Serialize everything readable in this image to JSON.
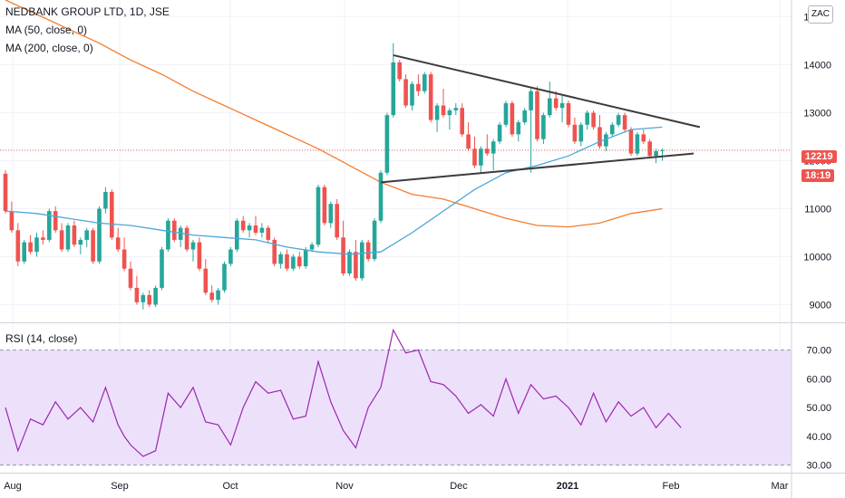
{
  "legend": {
    "symbol_line": "NEDBANK GROUP LTD, 1D, JSE",
    "ma50_label": "MA (50, close, 0)",
    "ma200_label": "MA (200, close, 0)",
    "rsi_label": "RSI (14, close)"
  },
  "currency": "ZAC",
  "last_price_badge": "12219",
  "countdown_badge": "18:19",
  "colors": {
    "up": "#26a69a",
    "down": "#ef5350",
    "ma50": "#4aa8d8",
    "ma200": "#f57c2e",
    "trendline": "#3c3c3c",
    "rsi_line": "#9c27b0",
    "rsi_band": "#ede0fb"
  },
  "chart_data": [
    {
      "type": "candlestick",
      "title": "NEDBANK GROUP LTD, 1D, JSE",
      "x_ticks": [
        "Aug",
        "Sep",
        "Oct",
        "Nov",
        "Dec",
        "2021",
        "Feb",
        "Mar"
      ],
      "y_ticks": [
        9000,
        10000,
        11000,
        12000,
        13000,
        14000,
        15000
      ],
      "ylim": [
        8650,
        15350
      ],
      "last_price": 12219,
      "series_ohlc": [
        [
          11730,
          11800,
          10900,
          10950
        ],
        [
          10950,
          11150,
          10500,
          10550
        ],
        [
          10550,
          10700,
          9800,
          9900
        ],
        [
          9900,
          10350,
          9850,
          10300
        ],
        [
          10300,
          10450,
          10050,
          10100
        ],
        [
          10100,
          10500,
          10000,
          10400
        ],
        [
          10400,
          10550,
          10250,
          10350
        ],
        [
          10350,
          11000,
          10300,
          10950
        ],
        [
          10950,
          11050,
          10500,
          10550
        ],
        [
          10550,
          10700,
          10100,
          10150
        ],
        [
          10150,
          10700,
          10100,
          10650
        ],
        [
          10650,
          10750,
          10200,
          10250
        ],
        [
          10250,
          10400,
          10050,
          10350
        ],
        [
          10350,
          10600,
          10200,
          10550
        ],
        [
          10550,
          10600,
          9850,
          9900
        ],
        [
          9900,
          11050,
          9850,
          11000
        ],
        [
          11000,
          11450,
          10900,
          11350
        ],
        [
          11350,
          11400,
          10350,
          10400
        ],
        [
          10400,
          10600,
          10100,
          10150
        ],
        [
          10150,
          10400,
          9700,
          9750
        ],
        [
          9750,
          9900,
          9300,
          9350
        ],
        [
          9350,
          9600,
          9000,
          9050
        ],
        [
          9050,
          9250,
          8900,
          9200
        ],
        [
          9200,
          9300,
          8950,
          9000
        ],
        [
          9000,
          9400,
          8950,
          9350
        ],
        [
          9350,
          10200,
          9300,
          10150
        ],
        [
          10150,
          10800,
          10100,
          10750
        ],
        [
          10750,
          10800,
          10300,
          10350
        ],
        [
          10350,
          10650,
          10200,
          10600
        ],
        [
          10600,
          10650,
          10100,
          10150
        ],
        [
          10150,
          10350,
          9900,
          10300
        ],
        [
          10300,
          10400,
          9700,
          9750
        ],
        [
          9750,
          9950,
          9200,
          9250
        ],
        [
          9250,
          9400,
          9050,
          9100
        ],
        [
          9100,
          9350,
          9000,
          9300
        ],
        [
          9300,
          9900,
          9250,
          9850
        ],
        [
          9850,
          10200,
          9800,
          10150
        ],
        [
          10150,
          10800,
          10100,
          10750
        ],
        [
          10750,
          10850,
          10500,
          10550
        ],
        [
          10550,
          10700,
          10400,
          10650
        ],
        [
          10650,
          10850,
          10450,
          10500
        ],
        [
          10500,
          10700,
          10400,
          10600
        ],
        [
          10600,
          10650,
          10300,
          10350
        ],
        [
          10350,
          10400,
          9800,
          9850
        ],
        [
          9850,
          10100,
          9750,
          10050
        ],
        [
          10050,
          10150,
          9700,
          9750
        ],
        [
          9750,
          10050,
          9700,
          10000
        ],
        [
          10000,
          10100,
          9750,
          9800
        ],
        [
          9800,
          10200,
          9750,
          10150
        ],
        [
          10150,
          10300,
          10100,
          10250
        ],
        [
          10250,
          11500,
          10200,
          11450
        ],
        [
          11450,
          11500,
          10650,
          10700
        ],
        [
          10700,
          11150,
          10600,
          11100
        ],
        [
          11100,
          11200,
          10350,
          10400
        ],
        [
          10400,
          10750,
          9600,
          9650
        ],
        [
          9650,
          10150,
          9600,
          10100
        ],
        [
          10100,
          10350,
          9500,
          9550
        ],
        [
          9550,
          10350,
          9500,
          10300
        ],
        [
          10300,
          10350,
          9900,
          9950
        ],
        [
          9950,
          10800,
          9900,
          10750
        ],
        [
          10750,
          11800,
          10700,
          11750
        ],
        [
          11750,
          13000,
          11700,
          12950
        ],
        [
          12950,
          14450,
          12900,
          14050
        ],
        [
          14050,
          14100,
          13650,
          13700
        ],
        [
          13700,
          13800,
          13100,
          13150
        ],
        [
          13150,
          13650,
          13050,
          13600
        ],
        [
          13600,
          13800,
          13350,
          13450
        ],
        [
          13450,
          13850,
          13400,
          13800
        ],
        [
          13800,
          13850,
          12800,
          12850
        ],
        [
          12850,
          13200,
          12600,
          13150
        ],
        [
          13150,
          13500,
          12900,
          12950
        ],
        [
          12950,
          13100,
          12650,
          13050
        ],
        [
          13050,
          13200,
          12950,
          13100
        ],
        [
          13100,
          13200,
          12500,
          12550
        ],
        [
          12550,
          12800,
          12200,
          12250
        ],
        [
          12250,
          12500,
          11850,
          11900
        ],
        [
          11900,
          12300,
          11750,
          12250
        ],
        [
          12250,
          12550,
          12100,
          12150
        ],
        [
          12150,
          12450,
          11800,
          12400
        ],
        [
          12400,
          12800,
          12350,
          12750
        ],
        [
          12750,
          13250,
          12700,
          13200
        ],
        [
          13200,
          13250,
          12500,
          12550
        ],
        [
          12550,
          12850,
          12400,
          12800
        ],
        [
          12800,
          13100,
          12750,
          13050
        ],
        [
          13050,
          13500,
          11750,
          13450
        ],
        [
          13450,
          13550,
          12400,
          12450
        ],
        [
          12450,
          13000,
          12350,
          12950
        ],
        [
          12950,
          13650,
          12900,
          13300
        ],
        [
          13300,
          13450,
          13050,
          13100
        ],
        [
          13100,
          13350,
          12800,
          13200
        ],
        [
          13200,
          13250,
          12700,
          12750
        ],
        [
          12750,
          12900,
          12350,
          12400
        ],
        [
          12400,
          12800,
          12300,
          12750
        ],
        [
          12750,
          13050,
          12650,
          13000
        ],
        [
          13000,
          13050,
          12650,
          12700
        ],
        [
          12700,
          12950,
          12250,
          12300
        ],
        [
          12300,
          12600,
          12200,
          12550
        ],
        [
          12550,
          12800,
          12500,
          12750
        ],
        [
          12750,
          13000,
          12700,
          12950
        ],
        [
          12950,
          13000,
          12600,
          12650
        ],
        [
          12650,
          12700,
          12100,
          12150
        ],
        [
          12150,
          12600,
          12100,
          12550
        ],
        [
          12550,
          12650,
          12350,
          12400
        ],
        [
          12400,
          12450,
          12050,
          12100
        ],
        [
          12100,
          12250,
          11950,
          12200
        ],
        [
          12200,
          12250,
          12000,
          12219
        ]
      ],
      "series": [
        {
          "name": "MA (50, close, 0)",
          "x_index": [
            0,
            5,
            10,
            15,
            20,
            25,
            30,
            35,
            40,
            45,
            50,
            55,
            60,
            65,
            70,
            75,
            80,
            85,
            90,
            95,
            100,
            105
          ],
          "values": [
            10950,
            10900,
            10800,
            10700,
            10650,
            10550,
            10450,
            10400,
            10350,
            10200,
            10100,
            10050,
            10100,
            10500,
            10950,
            11400,
            11750,
            11900,
            12100,
            12400,
            12650,
            12700
          ]
        },
        {
          "name": "MA (200, close, 0)",
          "x_index": [
            0,
            5,
            10,
            15,
            20,
            25,
            30,
            35,
            40,
            45,
            50,
            55,
            60,
            65,
            70,
            75,
            80,
            85,
            90,
            95,
            100,
            105
          ],
          "values": [
            15350,
            15050,
            14750,
            14450,
            14100,
            13800,
            13450,
            13150,
            12850,
            12550,
            12250,
            11900,
            11550,
            11300,
            11200,
            11000,
            10800,
            10650,
            10620,
            10700,
            10900,
            11000
          ]
        }
      ],
      "trendlines": [
        {
          "from": [
            62,
            14200
          ],
          "to": [
            111,
            12700
          ]
        },
        {
          "from": [
            60,
            11550
          ],
          "to": [
            110,
            12150
          ]
        }
      ]
    },
    {
      "type": "line",
      "title": "RSI (14, close)",
      "y_ticks": [
        "30.00",
        "40.00",
        "50.00",
        "60.00",
        "70.00"
      ],
      "band": [
        30,
        70
      ],
      "ylim": [
        28,
        79
      ],
      "x_index": [
        0,
        2,
        4,
        6,
        8,
        10,
        12,
        14,
        16,
        18,
        19,
        20,
        22,
        24,
        26,
        28,
        30,
        32,
        34,
        36,
        38,
        40,
        42,
        44,
        46,
        48,
        50,
        52,
        54,
        56,
        58,
        60,
        62,
        64,
        66,
        68,
        70,
        72,
        74,
        76,
        78,
        80,
        82,
        84,
        86,
        88,
        90,
        92,
        94,
        96,
        98,
        100,
        102,
        104,
        106,
        108
      ],
      "values": [
        50,
        35,
        46,
        44,
        52,
        46,
        50,
        45,
        57,
        44,
        40,
        37,
        33,
        35,
        55,
        50,
        57,
        45,
        44,
        37,
        50,
        59,
        55,
        56,
        46,
        47,
        66,
        52,
        42,
        36,
        50,
        57,
        77,
        69,
        70,
        59,
        58,
        54,
        48,
        51,
        47,
        60,
        48,
        58,
        53,
        54,
        50,
        44,
        55,
        45,
        52,
        47,
        50,
        43,
        48,
        43
      ]
    }
  ]
}
